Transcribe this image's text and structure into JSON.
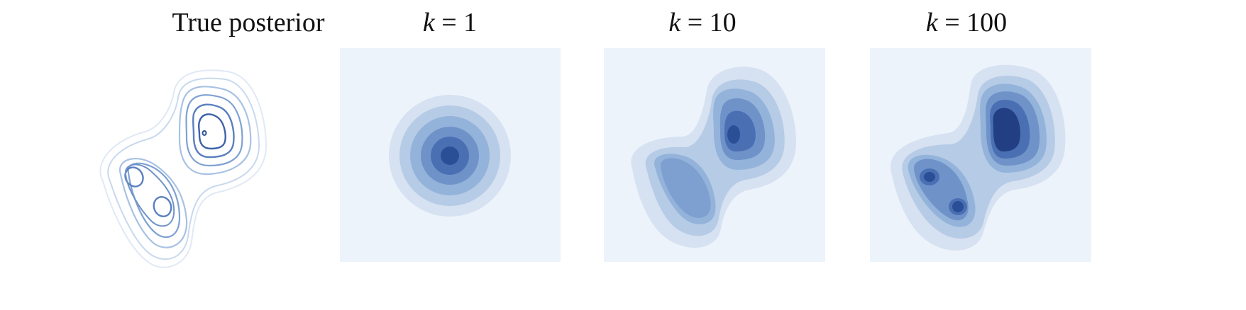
{
  "figure": {
    "panels": [
      {
        "id": "true-posterior",
        "title": "True posterior",
        "style": "contour"
      },
      {
        "id": "k1",
        "title_var": "k",
        "title_eq": " = 1",
        "style": "filled"
      },
      {
        "id": "k10",
        "title_var": "k",
        "title_eq": " = 10",
        "style": "filled"
      },
      {
        "id": "k100",
        "title_var": "k",
        "title_eq": " = 100",
        "style": "filled"
      }
    ],
    "colors": {
      "background_fill": "#edf3fb",
      "level1": "#d6e1f1",
      "level2": "#b6cbe6",
      "level3": "#94b3da",
      "level4": "#6f93c9",
      "level5": "#4a70b3",
      "level6": "#2b4f96",
      "level7": "#213f82"
    }
  }
}
